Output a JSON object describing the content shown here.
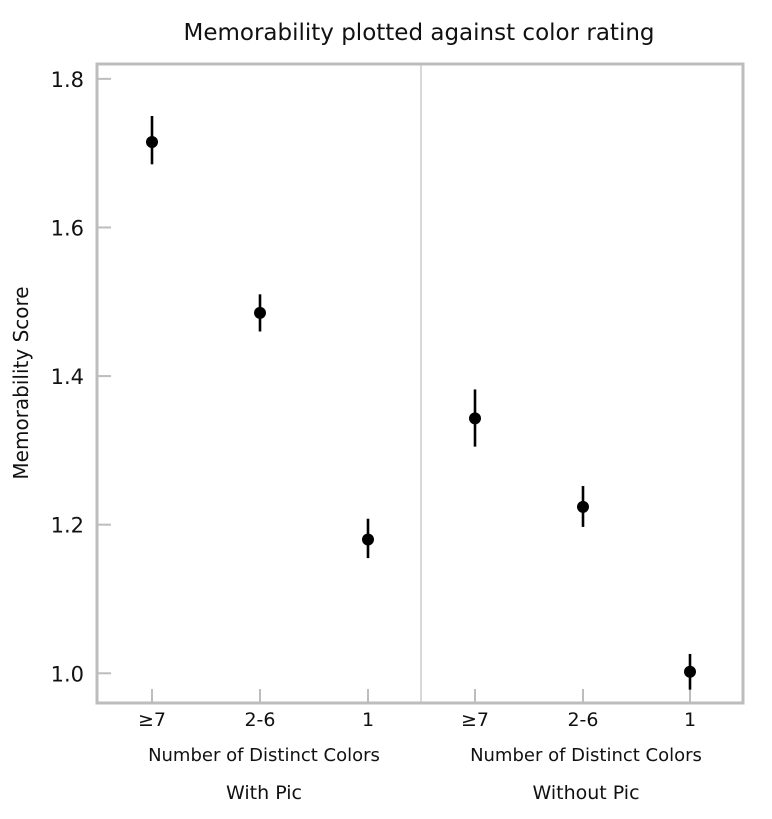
{
  "chart_data": {
    "type": "scatter",
    "title": "Memorability plotted against color rating",
    "ylabel": "Memorability Score",
    "ylim": [
      0.96,
      1.82
    ],
    "yticks": [
      "1.0",
      "1.2",
      "1.4",
      "1.6",
      "1.8"
    ],
    "ytick_values": [
      1.0,
      1.2,
      1.4,
      1.6,
      1.8
    ],
    "grid": false,
    "panels": [
      {
        "name": "With Pic",
        "xlabel": "Number of Distinct Colors",
        "categories": [
          "≥7",
          "2-6",
          "1"
        ],
        "values": [
          1.715,
          1.485,
          1.18
        ],
        "error_low": [
          1.685,
          1.46,
          1.155
        ],
        "error_high": [
          1.75,
          1.51,
          1.208
        ]
      },
      {
        "name": "Without Pic",
        "xlabel": "Number of Distinct Colors",
        "categories": [
          "≥7",
          "2-6",
          "1"
        ],
        "values": [
          1.343,
          1.224,
          1.002
        ],
        "error_low": [
          1.305,
          1.197,
          0.978
        ],
        "error_high": [
          1.382,
          1.252,
          1.026
        ]
      }
    ],
    "colors": {
      "marker": "#000000",
      "frame": "#bdbdbd",
      "divider": "#bfbfbf"
    }
  }
}
